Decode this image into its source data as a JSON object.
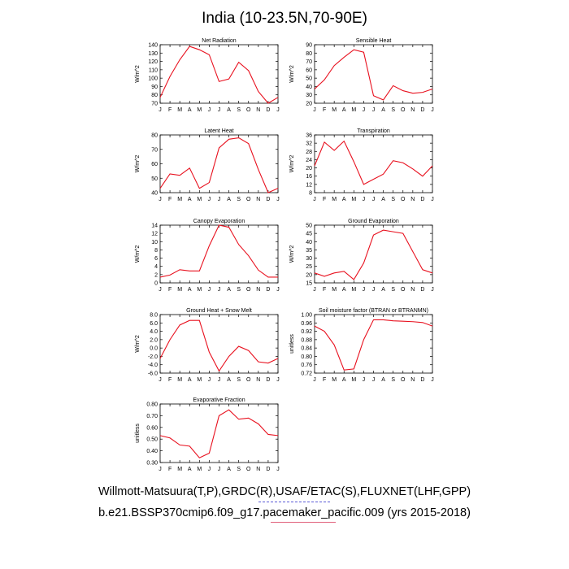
{
  "figure": {
    "title": "India (10-23.5N,70-90E)",
    "footer_line1": "Willmott-Matsuura(T,P),GRDC(R),USAF/ETAC(S),FLUXNET(LHF,GPP)",
    "footer_line2": "b.e21.BSSP370cmip6.f09_g17.pacemaker_pacific.009 (yrs 2015-2018)",
    "line_color": "#e8101e"
  },
  "chart_data": [
    {
      "type": "line",
      "title": "Net Radiation",
      "ylabel": "W/m^2",
      "categories": [
        "J",
        "F",
        "M",
        "A",
        "M",
        "J",
        "J",
        "A",
        "S",
        "O",
        "N",
        "D",
        "J"
      ],
      "values": [
        77,
        102,
        122,
        138,
        134,
        128,
        96,
        99,
        119,
        109,
        84,
        70,
        77
      ],
      "ylim": [
        70,
        140
      ],
      "yticks": [
        "70",
        "80",
        "90",
        "100",
        "110",
        "120",
        "130",
        "140"
      ]
    },
    {
      "type": "line",
      "title": "Sensible Heat",
      "ylabel": "W/m^2",
      "categories": [
        "J",
        "F",
        "M",
        "A",
        "M",
        "J",
        "J",
        "A",
        "S",
        "O",
        "N",
        "D",
        "J"
      ],
      "values": [
        37,
        48,
        65,
        75,
        84,
        81,
        29,
        24,
        41,
        35,
        32,
        33,
        37
      ],
      "ylim": [
        20,
        90
      ],
      "yticks": [
        "20",
        "30",
        "40",
        "50",
        "60",
        "70",
        "80",
        "90"
      ]
    },
    {
      "type": "line",
      "title": "Latent Heat",
      "ylabel": "W/m^2",
      "categories": [
        "J",
        "F",
        "M",
        "A",
        "M",
        "J",
        "J",
        "A",
        "S",
        "O",
        "N",
        "D",
        "J"
      ],
      "values": [
        43,
        53,
        52,
        57,
        43,
        47,
        71,
        77,
        78,
        74,
        56,
        40,
        43
      ],
      "ylim": [
        40,
        80
      ],
      "yticks": [
        "40",
        "50",
        "60",
        "70",
        "80"
      ]
    },
    {
      "type": "line",
      "title": "Transpiration",
      "ylabel": "W/m^2",
      "categories": [
        "J",
        "F",
        "M",
        "A",
        "M",
        "J",
        "J",
        "A",
        "S",
        "O",
        "N",
        "D",
        "J"
      ],
      "values": [
        21,
        32.5,
        28.5,
        33,
        23,
        12,
        14.5,
        17,
        23.5,
        22.5,
        19.5,
        16,
        21
      ],
      "ylim": [
        8,
        36
      ],
      "yticks": [
        "8",
        "12",
        "16",
        "20",
        "24",
        "28",
        "32",
        "36"
      ]
    },
    {
      "type": "line",
      "title": "Canopy Evaporation",
      "ylabel": "W/m^2",
      "categories": [
        "J",
        "F",
        "M",
        "A",
        "M",
        "J",
        "J",
        "A",
        "S",
        "O",
        "N",
        "D",
        "J"
      ],
      "values": [
        1.4,
        1.9,
        3.2,
        2.9,
        2.9,
        9,
        14,
        13.5,
        9.3,
        6.6,
        3.1,
        1.4,
        1.4
      ],
      "ylim": [
        0,
        14
      ],
      "yticks": [
        "0",
        "2",
        "4",
        "6",
        "8",
        "10",
        "12",
        "14"
      ]
    },
    {
      "type": "line",
      "title": "Ground Evaporation",
      "ylabel": "W/m^2",
      "categories": [
        "J",
        "F",
        "M",
        "A",
        "M",
        "J",
        "J",
        "A",
        "S",
        "O",
        "N",
        "D",
        "J"
      ],
      "values": [
        21,
        19,
        21,
        22,
        17,
        27,
        44,
        47,
        46,
        45,
        34,
        23,
        21
      ],
      "ylim": [
        15,
        50
      ],
      "yticks": [
        "15",
        "20",
        "25",
        "30",
        "35",
        "40",
        "45",
        "50"
      ]
    },
    {
      "type": "line",
      "title": "Ground Heat + Snow Melt",
      "ylabel": "W/m^2",
      "categories": [
        "J",
        "F",
        "M",
        "A",
        "M",
        "J",
        "J",
        "A",
        "S",
        "O",
        "N",
        "D",
        "J"
      ],
      "values": [
        -2.5,
        2,
        5.5,
        6.6,
        6.6,
        -1,
        -5.5,
        -2,
        0.4,
        -0.6,
        -3.3,
        -3.6,
        -2.5
      ],
      "ylim": [
        -6,
        8
      ],
      "yticks": [
        "-6.0",
        "-4.0",
        "-2.0",
        "0.0",
        "2.0",
        "4.0",
        "6.0",
        "8.0"
      ]
    },
    {
      "type": "line",
      "title": "Soil moisture factor (BTRAN or BTRANMN)",
      "ylabel": "unitless",
      "categories": [
        "J",
        "F",
        "M",
        "A",
        "M",
        "J",
        "J",
        "A",
        "S",
        "O",
        "N",
        "D",
        "J"
      ],
      "values": [
        0.945,
        0.92,
        0.855,
        0.735,
        0.74,
        0.88,
        0.975,
        0.975,
        0.97,
        0.968,
        0.966,
        0.962,
        0.945
      ],
      "ylim": [
        0.72,
        1.0
      ],
      "yticks": [
        "0.72",
        "0.76",
        "0.80",
        "0.84",
        "0.88",
        "0.92",
        "0.96",
        "1.00"
      ]
    },
    {
      "type": "line",
      "title": "Evaporative Fraction",
      "ylabel": "unitless",
      "categories": [
        "J",
        "F",
        "M",
        "A",
        "M",
        "J",
        "J",
        "A",
        "S",
        "O",
        "N",
        "D",
        "J"
      ],
      "values": [
        0.53,
        0.51,
        0.45,
        0.44,
        0.34,
        0.38,
        0.7,
        0.75,
        0.67,
        0.68,
        0.63,
        0.54,
        0.53
      ],
      "ylim": [
        0.3,
        0.8
      ],
      "yticks": [
        "0.30",
        "0.40",
        "0.50",
        "0.60",
        "0.70",
        "0.80"
      ]
    }
  ]
}
